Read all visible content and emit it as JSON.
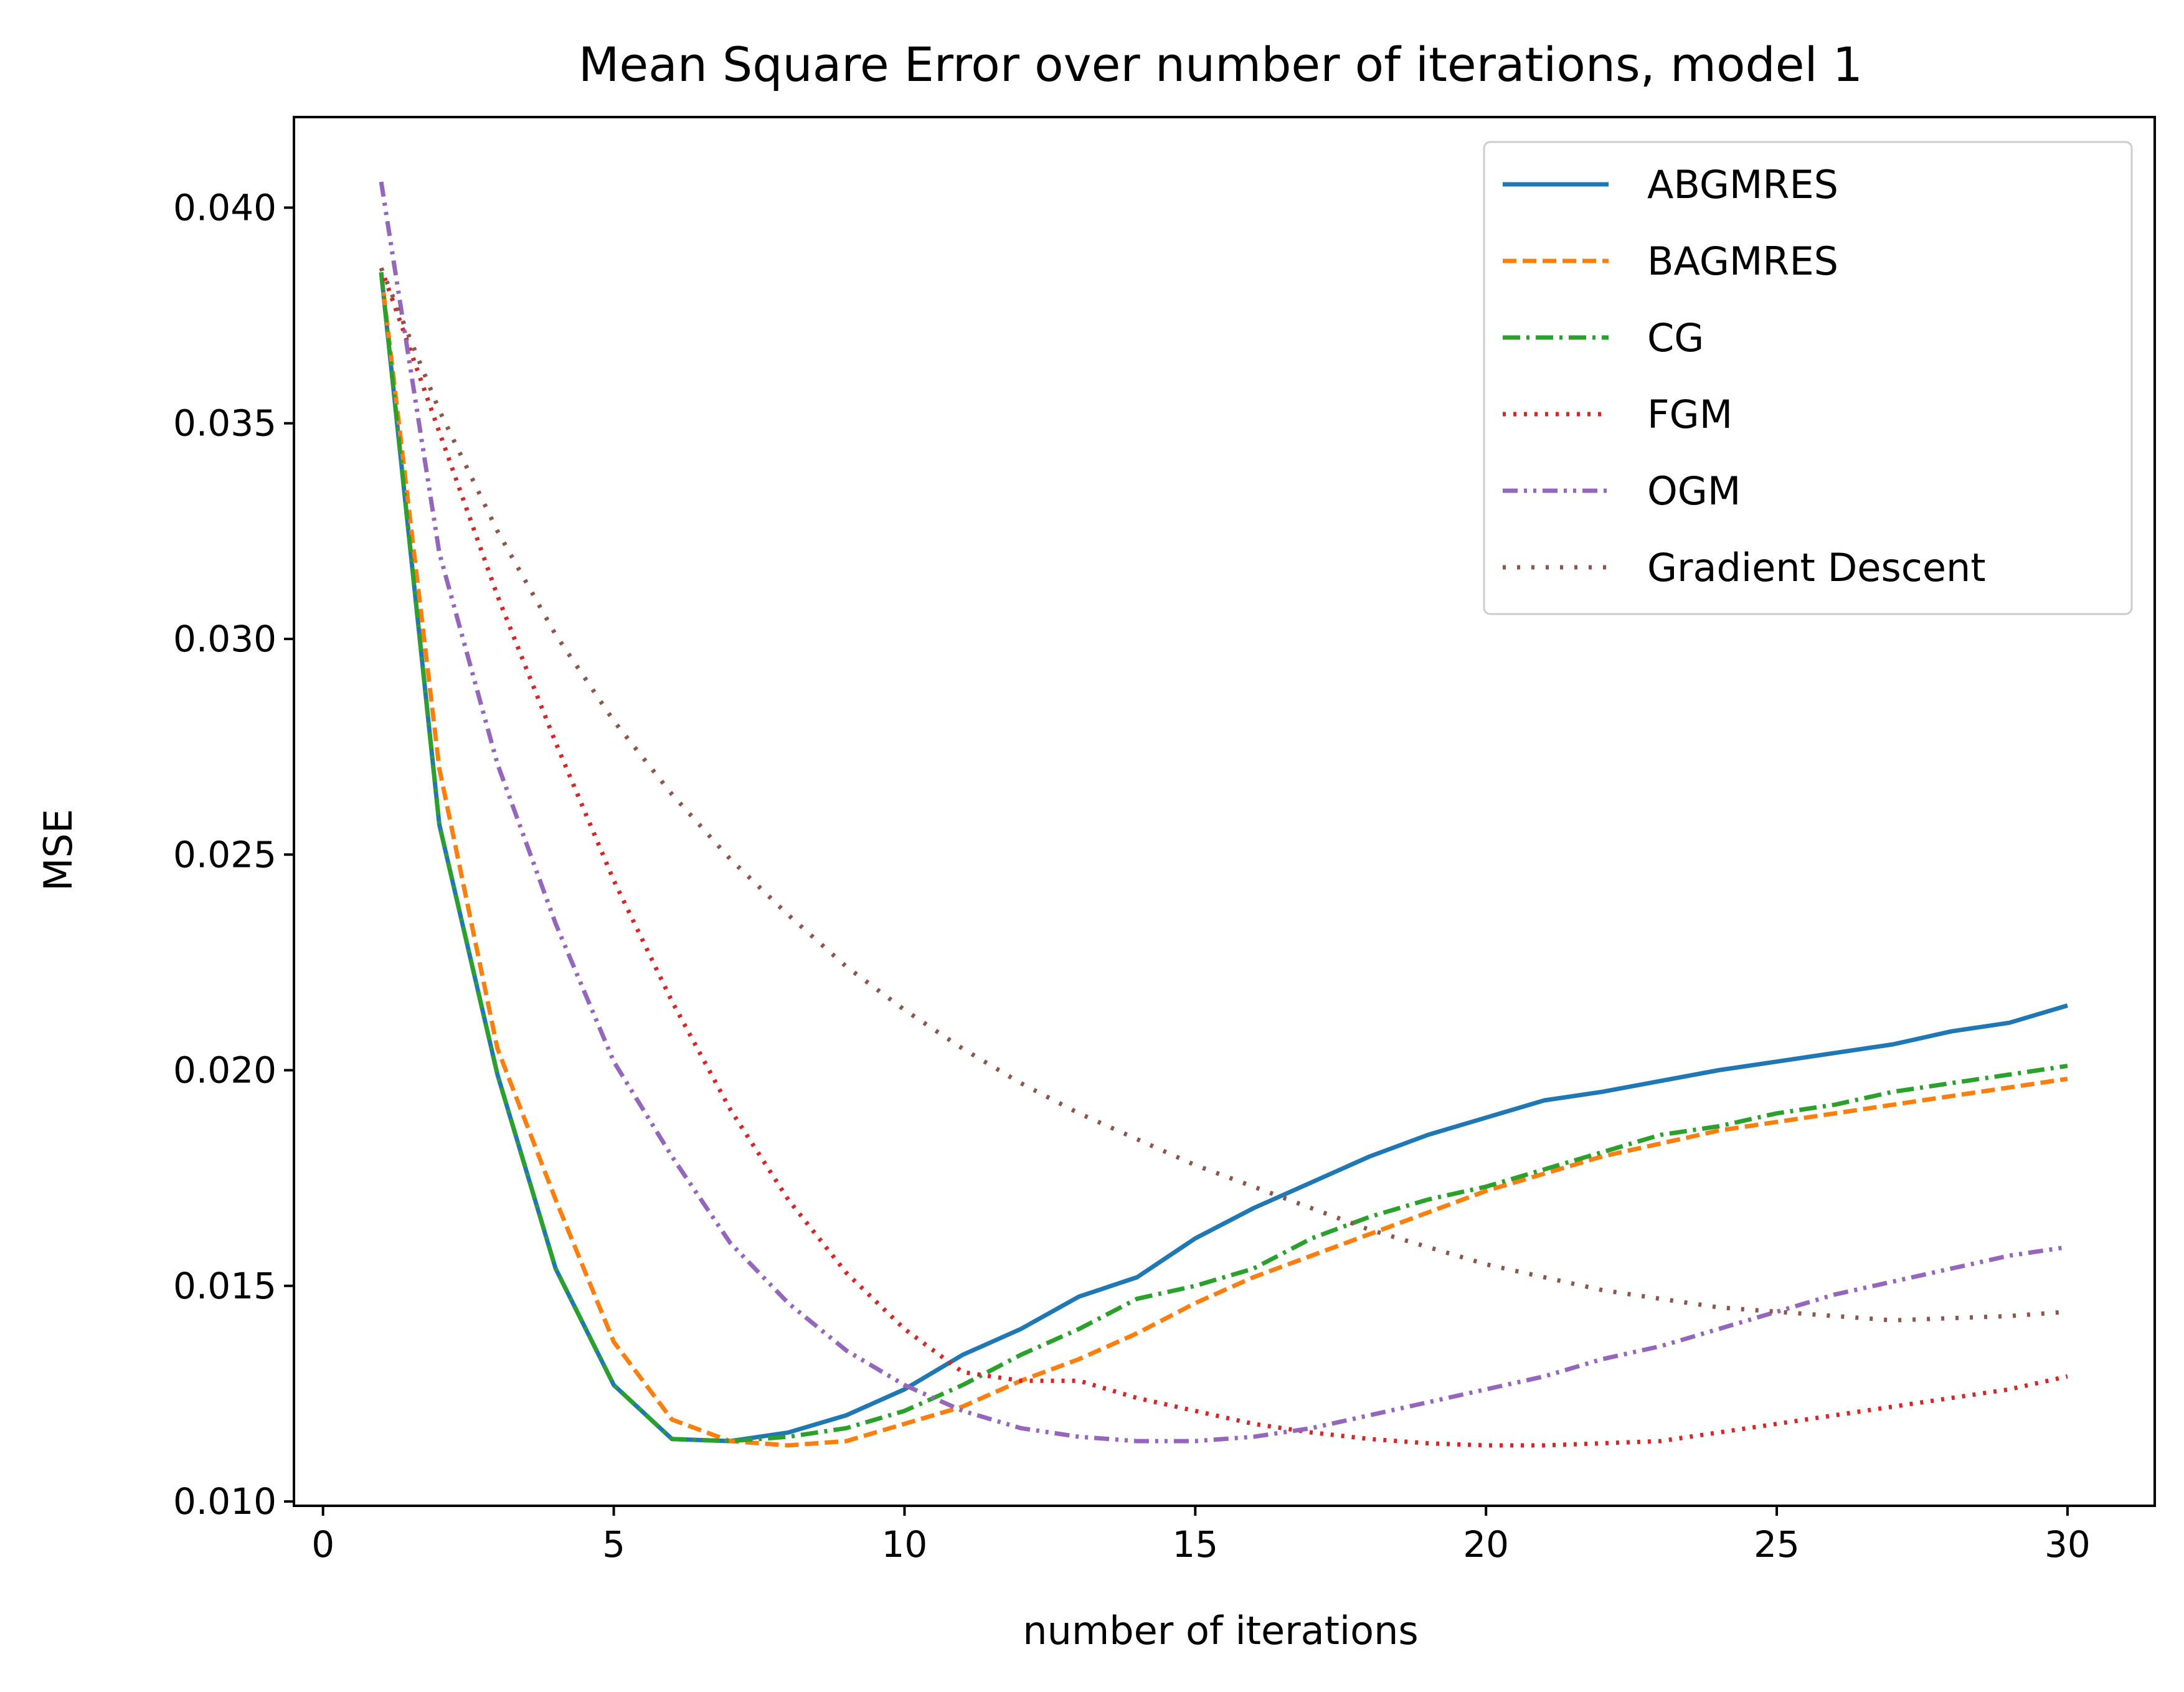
{
  "chart_data": {
    "type": "line",
    "title": "Mean Square Error over number of iterations, model 1",
    "xlabel": "number of iterations",
    "ylabel": "MSE",
    "xlim": [
      -0.5,
      31.5
    ],
    "ylim": [
      0.0099,
      0.0421
    ],
    "xticks": [
      0,
      5,
      10,
      15,
      20,
      25,
      30
    ],
    "xtick_labels": [
      "0",
      "5",
      "10",
      "15",
      "20",
      "25",
      "30"
    ],
    "yticks": [
      0.01,
      0.015,
      0.02,
      0.025,
      0.03,
      0.035,
      0.04
    ],
    "ytick_labels": [
      "0.010",
      "0.015",
      "0.020",
      "0.025",
      "0.030",
      "0.035",
      "0.040"
    ],
    "grid": false,
    "legend_position": "top-right",
    "x": [
      1,
      2,
      3,
      4,
      5,
      6,
      7,
      8,
      9,
      10,
      11,
      12,
      13,
      14,
      15,
      16,
      17,
      18,
      19,
      20,
      21,
      22,
      23,
      24,
      25,
      26,
      27,
      28,
      29,
      30
    ],
    "series": [
      {
        "name": "ABGMRES",
        "color": "#1f77b4",
        "dash": "solid",
        "values": [
          0.0385,
          0.0257,
          0.0199,
          0.0154,
          0.0127,
          0.01145,
          0.0114,
          0.0116,
          0.012,
          0.0126,
          0.0134,
          0.014,
          0.01475,
          0.0152,
          0.0161,
          0.0168,
          0.0174,
          0.018,
          0.0185,
          0.0189,
          0.0193,
          0.0195,
          0.01975,
          0.02,
          0.0202,
          0.0204,
          0.0206,
          0.0209,
          0.0211,
          0.0215
        ]
      },
      {
        "name": "BAGMRES",
        "color": "#ff7f0e",
        "dash": "dashed",
        "values": [
          0.0385,
          0.027,
          0.0205,
          0.017,
          0.0137,
          0.0119,
          0.0114,
          0.0113,
          0.0114,
          0.0118,
          0.0122,
          0.0128,
          0.0133,
          0.0139,
          0.0146,
          0.0152,
          0.0157,
          0.0162,
          0.0167,
          0.0172,
          0.0176,
          0.018,
          0.0183,
          0.0186,
          0.0188,
          0.019,
          0.0192,
          0.0194,
          0.0196,
          0.0198
        ]
      },
      {
        "name": "CG",
        "color": "#2ca02c",
        "dash": "dashdot",
        "values": [
          0.0385,
          0.0257,
          0.0199,
          0.0154,
          0.0127,
          0.01145,
          0.0114,
          0.0115,
          0.0117,
          0.0121,
          0.0127,
          0.0134,
          0.014,
          0.0147,
          0.015,
          0.0154,
          0.0161,
          0.0166,
          0.017,
          0.0173,
          0.0177,
          0.0181,
          0.0185,
          0.0187,
          0.019,
          0.0192,
          0.0195,
          0.0197,
          0.0199,
          0.0201
        ]
      },
      {
        "name": "FGM",
        "color": "#d62728",
        "dash": "dotted",
        "values": [
          0.0386,
          0.0348,
          0.031,
          0.0276,
          0.0244,
          0.0216,
          0.0191,
          0.017,
          0.0153,
          0.014,
          0.013,
          0.0128,
          0.0128,
          0.0124,
          0.0121,
          0.0118,
          0.0116,
          0.01145,
          0.01135,
          0.0113,
          0.0113,
          0.01135,
          0.0114,
          0.0116,
          0.0118,
          0.012,
          0.0122,
          0.0124,
          0.0126,
          0.0129
        ]
      },
      {
        "name": "OGM",
        "color": "#9467bd",
        "dash": "dashdotdot",
        "values": [
          0.0406,
          0.032,
          0.0271,
          0.0234,
          0.0202,
          0.018,
          0.016,
          0.0146,
          0.0135,
          0.0127,
          0.0121,
          0.0117,
          0.0115,
          0.0114,
          0.0114,
          0.0115,
          0.0117,
          0.012,
          0.0123,
          0.0126,
          0.0129,
          0.0133,
          0.0136,
          0.014,
          0.0144,
          0.0148,
          0.0151,
          0.0154,
          0.0157,
          0.0159
        ]
      },
      {
        "name": "Gradient Descent",
        "color": "#8c564b",
        "dash": "loosedot",
        "values": [
          0.0386,
          0.0353,
          0.0325,
          0.0301,
          0.0281,
          0.0264,
          0.0249,
          0.0236,
          0.0224,
          0.0214,
          0.0205,
          0.0197,
          0.019,
          0.0184,
          0.0178,
          0.0173,
          0.0168,
          0.0163,
          0.0159,
          0.0155,
          0.0152,
          0.0149,
          0.0147,
          0.0145,
          0.0144,
          0.0143,
          0.0142,
          0.01425,
          0.0143,
          0.0144
        ]
      }
    ]
  }
}
